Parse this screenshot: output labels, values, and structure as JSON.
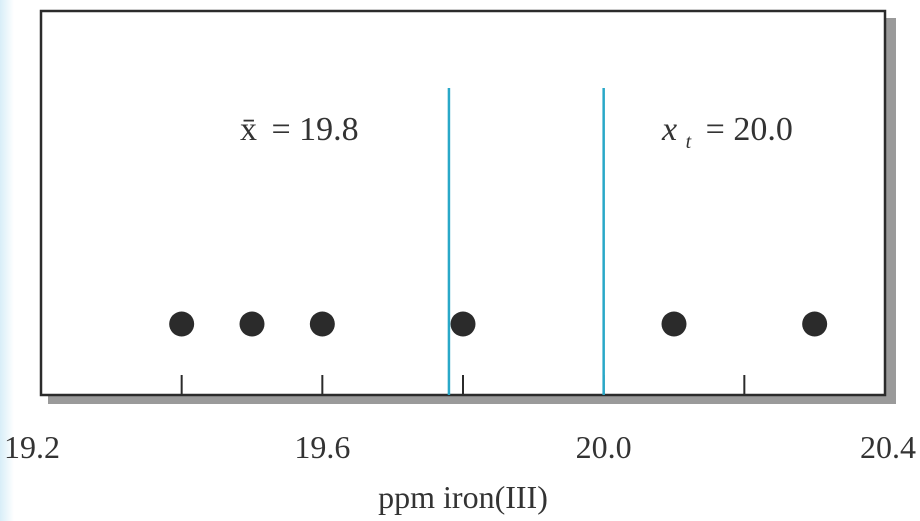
{
  "chart_data": {
    "type": "scatter",
    "title": "",
    "xlabel": "ppm iron(III)",
    "ylabel": "",
    "xlim": [
      19.2,
      20.4
    ],
    "x_ticks": [
      19.2,
      19.4,
      19.6,
      19.8,
      20.0,
      20.2,
      20.4
    ],
    "x_tick_labels": [
      {
        "value": 19.2,
        "label": "19.2"
      },
      {
        "value": 19.6,
        "label": "19.6"
      },
      {
        "value": 20.0,
        "label": "20.0"
      },
      {
        "value": 20.4,
        "label": "20.4"
      }
    ],
    "points": [
      19.4,
      19.5,
      19.6,
      19.8,
      20.1,
      20.3
    ],
    "reference_lines": [
      {
        "name": "mean",
        "value": 19.78,
        "label_text": "= 19.8",
        "label_symbol": "x̄"
      },
      {
        "name": "true-value",
        "value": 20.0,
        "label_text": "= 20.0",
        "label_symbol": "x",
        "label_subscript": "t"
      }
    ],
    "colors": {
      "points": "#2b2b2b",
      "reference_lines": "#29a8c8",
      "frame": "#2b2b2b",
      "frame_shadow": "#9a9a9a"
    },
    "grid": false
  }
}
